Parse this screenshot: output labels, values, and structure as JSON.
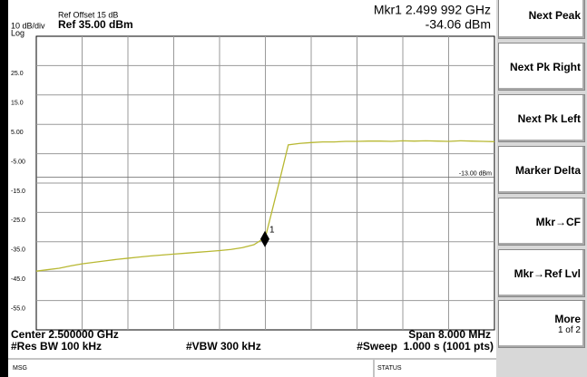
{
  "chart_data": {
    "type": "line",
    "ref_offset": "Ref Offset 15 dB",
    "scale": "10 dB/div",
    "ref_level": "Ref 35.00 dBm",
    "scale_type": "Log",
    "marker_readout": "Mkr1 2.499 992 GHz",
    "marker_level": "-34.06 dBm",
    "center": "Center 2.500000 GHz",
    "span": "Span 8.000 MHz",
    "rbw": "#Res BW 100 kHz",
    "vbw": "#VBW 300 kHz",
    "sweep": "#Sweep  1.000 s (1001 pts)",
    "xlim": [
      2.496,
      2.504
    ],
    "ylim": [
      -65,
      35
    ],
    "yticks": [
      {
        "value": 25,
        "label": "25.0"
      },
      {
        "value": 15,
        "label": "15.0"
      },
      {
        "value": 5,
        "label": "5.00"
      },
      {
        "value": -5,
        "label": "-5.00"
      },
      {
        "value": -15,
        "label": "-15.0"
      },
      {
        "value": -25,
        "label": "-25.0"
      },
      {
        "value": -35,
        "label": "-35.0"
      },
      {
        "value": -45,
        "label": "-45.0"
      },
      {
        "value": -55,
        "label": "-55.0"
      }
    ],
    "grid": true,
    "display_line": {
      "value": -13,
      "label": "-13.00 dBm"
    },
    "x": [
      2.496,
      2.4962,
      2.4964,
      2.4966,
      2.4968,
      2.497,
      2.4972,
      2.4974,
      2.4976,
      2.4978,
      2.498,
      2.4982,
      2.4984,
      2.4986,
      2.4988,
      2.499,
      2.4992,
      2.4994,
      2.4996,
      2.4998,
      2.5,
      2.5002,
      2.5004,
      2.5006,
      2.5008,
      2.501,
      2.5012,
      2.5014,
      2.5016,
      2.5018,
      2.502,
      2.5022,
      2.5024,
      2.5026,
      2.5028,
      2.503,
      2.5032,
      2.5034,
      2.5036,
      2.5038,
      2.504
    ],
    "series": [
      {
        "color": "#b8b832",
        "values": [
          -45.0,
          -44.5,
          -44.0,
          -43.2,
          -42.5,
          -42.0,
          -41.5,
          -41.0,
          -40.6,
          -40.2,
          -39.8,
          -39.5,
          -39.2,
          -38.9,
          -38.6,
          -38.3,
          -38.0,
          -37.6,
          -37.0,
          -36.0,
          -33.5,
          -18.0,
          -2.0,
          -1.5,
          -1.2,
          -1.0,
          -1.0,
          -0.8,
          -0.8,
          -0.7,
          -0.7,
          -0.8,
          -0.6,
          -0.7,
          -0.6,
          -0.7,
          -0.8,
          -0.6,
          -0.7,
          -0.8,
          -0.9
        ]
      }
    ],
    "marker": {
      "name": "1",
      "x": 2.499992,
      "y": -34.06
    }
  },
  "softkeys": [
    {
      "label": "Next Peak"
    },
    {
      "label": "Next Pk Right"
    },
    {
      "label": "Next Pk Left"
    },
    {
      "label": "Marker Delta"
    },
    {
      "label": "Mkr→CF"
    },
    {
      "label": "Mkr→Ref Lvl"
    },
    {
      "label": "More",
      "sub": "1 of 2"
    }
  ],
  "status_bar": {
    "msg": "MSG",
    "status": "STATUS"
  }
}
